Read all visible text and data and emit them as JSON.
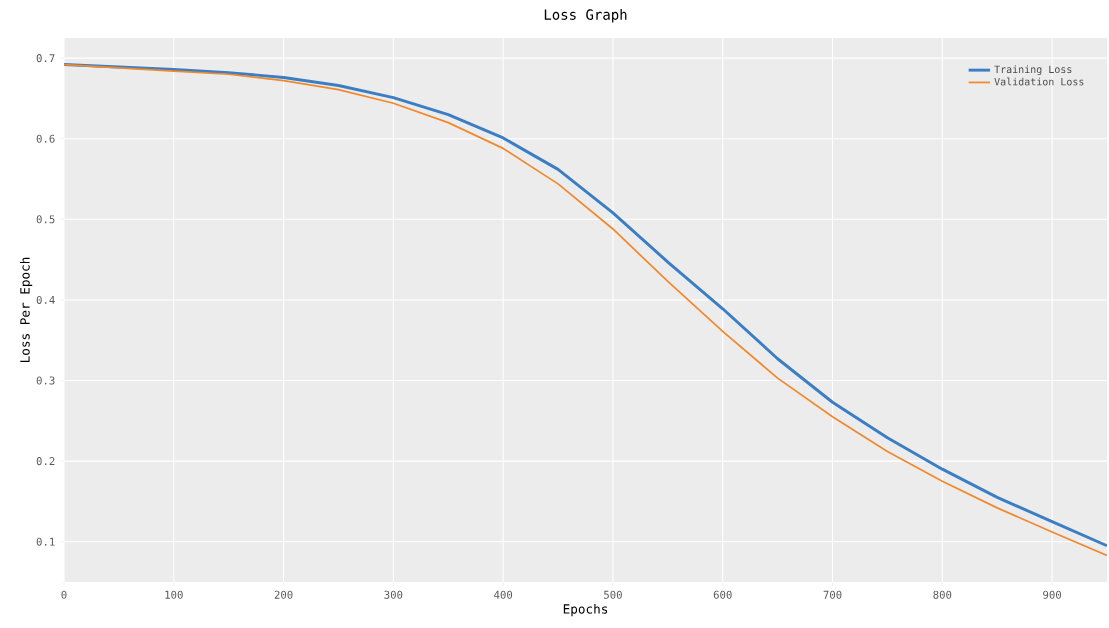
{
  "chart_data": {
    "type": "line",
    "title": "Loss Graph",
    "xlabel": "Epochs",
    "ylabel": "Loss Per Epoch",
    "x": [
      0,
      50,
      100,
      150,
      200,
      250,
      300,
      350,
      400,
      450,
      500,
      550,
      600,
      650,
      700,
      750,
      800,
      850,
      900,
      950
    ],
    "series": [
      {
        "name": "Training Loss",
        "color": "#3b7ec4",
        "values": [
          0.692,
          0.689,
          0.686,
          0.682,
          0.676,
          0.666,
          0.651,
          0.63,
          0.601,
          0.562,
          0.508,
          0.447,
          0.389,
          0.327,
          0.273,
          0.229,
          0.19,
          0.155,
          0.125,
          0.095
        ]
      },
      {
        "name": "Validation Loss",
        "color": "#f0892c",
        "values": [
          0.692,
          0.688,
          0.684,
          0.68,
          0.672,
          0.661,
          0.644,
          0.62,
          0.588,
          0.544,
          0.488,
          0.423,
          0.361,
          0.303,
          0.255,
          0.212,
          0.175,
          0.142,
          0.112,
          0.083
        ]
      }
    ],
    "xlim": [
      0,
      950
    ],
    "ylim": [
      0.05,
      0.725
    ],
    "xticks": [
      0,
      100,
      200,
      300,
      400,
      500,
      600,
      700,
      800,
      900
    ],
    "yticks": [
      0.1,
      0.2,
      0.3,
      0.4,
      0.5,
      0.6,
      0.7
    ],
    "grid": true,
    "legend": "top right"
  }
}
